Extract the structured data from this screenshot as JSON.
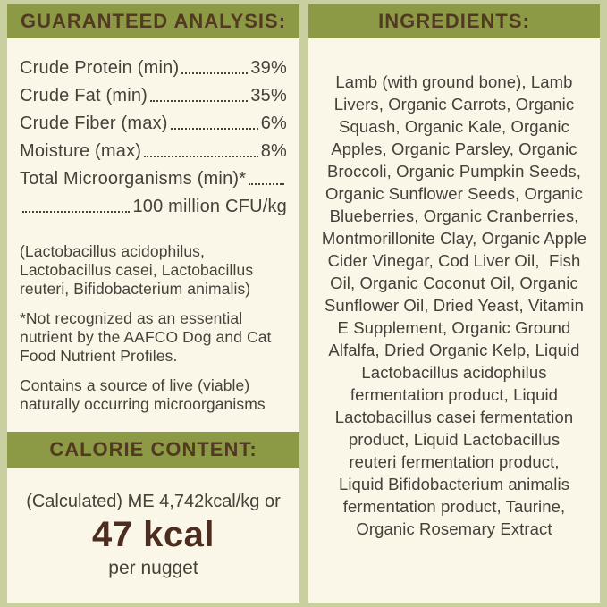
{
  "colors": {
    "outer_border": "#c9cf9e",
    "panel_background": "#faf6e8",
    "header_bar": "#8c9a45",
    "header_text": "#523a22",
    "body_text": "#48413a",
    "calorie_value_text": "#4c2d1f"
  },
  "guaranteed_analysis": {
    "title": "GUARANTEED ANALYSIS:",
    "rows": [
      {
        "label": "Crude Protein (min)",
        "value": "39%"
      },
      {
        "label": "Crude Fat (min)",
        "value": "35%"
      },
      {
        "label": "Crude Fiber (max)",
        "value": "6%"
      },
      {
        "label": "Moisture (max)",
        "value": "8%"
      },
      {
        "label": "Total Microorganisms (min)*",
        "value": ""
      },
      {
        "label": "",
        "value": "100 million CFU/kg"
      }
    ],
    "notes": [
      "(Lactobacillus acidophilus, Lactobacillus casei, Lactobacillus reuteri, Bifidobacterium animalis)",
      "*Not recognized as an essential nutrient by the AAFCO Dog and Cat Food Nutrient Profiles.",
      "Contains a source of live (viable) naturally occurring microorganisms"
    ]
  },
  "calorie_content": {
    "title": "CALORIE CONTENT:",
    "line1": "(Calculated) ME 4,742kcal/kg or",
    "value": "47 kcal",
    "unit": "per nugget"
  },
  "ingredients": {
    "title": "INGREDIENTS:",
    "text": "Lamb (with ground bone), Lamb\nLivers, Organic Carrots, Organic\nSquash, Organic Kale, Organic\nApples, Organic Parsley, Organic\nBroccoli, Organic Pumpkin Seeds,\nOrganic Sunflower Seeds, Organic\nBlueberries, Organic Cranberries,\nMontmorillonite Clay, Organic Apple\nCider Vinegar, Cod Liver Oil,  Fish\nOil, Organic Coconut Oil, Organic\nSunflower Oil, Dried Yeast, Vitamin\nE Supplement, Organic Ground\nAlfalfa, Dried Organic Kelp, Liquid\nLactobacillus acidophilus\nfermentation product, Liquid\nLactobacillus casei fermentation\nproduct, Liquid Lactobacillus\nreuteri fermentation product,\nLiquid Bifidobacterium animalis\nfermentation product, Taurine,\nOrganic Rosemary Extract"
  }
}
